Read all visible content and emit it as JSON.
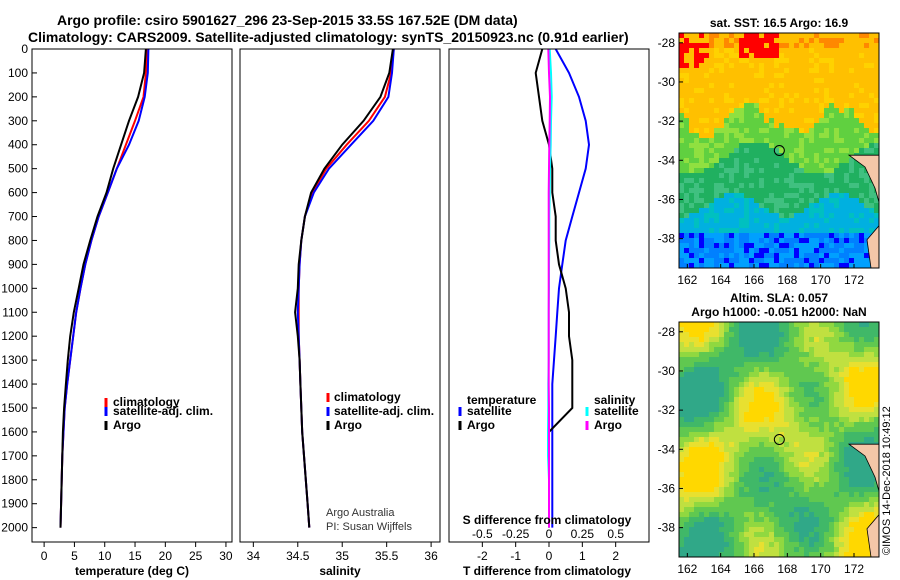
{
  "header": {
    "title_line1": "Argo profile: csiro 5901627_296 23-Sep-2015 33.5S 167.52E (DM data)",
    "title_line2": "Climatology: CARS2009. Satellite-adjusted climatology: synTS_20150923.nc (0.91d earlier)"
  },
  "colors": {
    "climatology": "#ff0000",
    "satellite": "#0000ff",
    "argo": "#000000",
    "sat_salinity": "#00ffff",
    "argo_salinity": "#ff00ff"
  },
  "chart_data": [
    {
      "type": "line",
      "id": "temperature",
      "xlabel": "temperature (deg C)",
      "ylabel": "",
      "xlim": [
        -2,
        31
      ],
      "ylim": [
        2060,
        0
      ],
      "xticks": [
        0,
        5,
        10,
        15,
        20,
        25,
        30
      ],
      "yticks": [
        0,
        100,
        200,
        300,
        400,
        500,
        600,
        700,
        800,
        900,
        1000,
        1100,
        1200,
        1300,
        1400,
        1500,
        1600,
        1700,
        1800,
        1900,
        2000
      ],
      "legend": [
        "climatology",
        "satellite-adj. clim.",
        "Argo"
      ],
      "series": [
        {
          "name": "climatology",
          "color": "#ff0000",
          "x": [
            17.0,
            16.8,
            16.4,
            15.0,
            13.5,
            12.0,
            10.5,
            9.0,
            7.8,
            6.8,
            6.0,
            5.3,
            4.8,
            4.3,
            3.8,
            3.4,
            3.2,
            3.0,
            2.9,
            2.8,
            2.7
          ],
          "y": [
            0,
            100,
            200,
            300,
            400,
            500,
            600,
            700,
            800,
            900,
            1000,
            1100,
            1200,
            1300,
            1400,
            1500,
            1600,
            1700,
            1800,
            1900,
            2000
          ]
        },
        {
          "name": "satellite-adj. clim.",
          "color": "#0000ff",
          "x": [
            17.2,
            17.1,
            16.6,
            15.6,
            14.0,
            12.0,
            10.5,
            9.0,
            7.8,
            6.8,
            6.0,
            5.3,
            4.8,
            4.3,
            3.8,
            3.4,
            3.2,
            3.0,
            2.9,
            2.8,
            2.7
          ],
          "y": [
            0,
            100,
            200,
            300,
            400,
            500,
            600,
            700,
            800,
            900,
            1000,
            1100,
            1200,
            1300,
            1400,
            1500,
            1600,
            1700,
            1800,
            1900,
            2000
          ]
        },
        {
          "name": "Argo",
          "color": "#000000",
          "x": [
            16.8,
            16.5,
            15.5,
            14.0,
            12.7,
            11.4,
            10.3,
            8.8,
            7.6,
            6.5,
            5.7,
            4.9,
            4.3,
            3.9,
            3.6,
            3.3,
            3.1,
            3.0,
            2.9,
            2.8,
            2.7
          ],
          "y": [
            0,
            100,
            200,
            300,
            400,
            500,
            600,
            700,
            800,
            900,
            1000,
            1100,
            1200,
            1300,
            1400,
            1500,
            1600,
            1700,
            1800,
            1900,
            2000
          ]
        }
      ]
    },
    {
      "type": "line",
      "id": "salinity",
      "xlabel": "salinity",
      "ylabel": "",
      "xlim": [
        33.85,
        36.1
      ],
      "ylim": [
        2060,
        0
      ],
      "xticks": [
        34,
        34.5,
        35,
        35.5,
        36
      ],
      "legend": [
        "climatology",
        "satellite-adj. clim.",
        "Argo"
      ],
      "annotation": [
        "Argo Australia",
        "PI: Susan Wijffels"
      ],
      "series": [
        {
          "name": "climatology",
          "color": "#ff0000",
          "x": [
            35.58,
            35.55,
            35.48,
            35.3,
            35.05,
            34.82,
            34.66,
            34.58,
            34.54,
            34.52,
            34.51,
            34.51,
            34.51,
            34.52,
            34.53,
            34.54,
            34.55,
            34.57,
            34.59,
            34.61,
            34.63
          ],
          "y": [
            0,
            100,
            200,
            300,
            400,
            500,
            600,
            700,
            800,
            900,
            1000,
            1100,
            1200,
            1300,
            1400,
            1500,
            1600,
            1700,
            1800,
            1900,
            2000
          ]
        },
        {
          "name": "satellite-adj. clim.",
          "color": "#0000ff",
          "x": [
            35.58,
            35.56,
            35.52,
            35.35,
            35.1,
            34.85,
            34.68,
            34.58,
            34.54,
            34.52,
            34.51,
            34.5,
            34.51,
            34.52,
            34.53,
            34.54,
            34.55,
            34.57,
            34.59,
            34.61,
            34.63
          ],
          "y": [
            0,
            100,
            200,
            300,
            400,
            500,
            600,
            700,
            800,
            900,
            1000,
            1100,
            1200,
            1300,
            1400,
            1500,
            1600,
            1700,
            1800,
            1900,
            2000
          ]
        },
        {
          "name": "Argo",
          "color": "#000000",
          "x": [
            35.57,
            35.53,
            35.43,
            35.24,
            35.0,
            34.8,
            34.65,
            34.58,
            34.54,
            34.51,
            34.5,
            34.47,
            34.5,
            34.52,
            34.53,
            34.54,
            34.55,
            34.57,
            34.59,
            34.61,
            34.63
          ],
          "y": [
            0,
            100,
            200,
            300,
            400,
            500,
            600,
            700,
            800,
            900,
            1000,
            1100,
            1200,
            1300,
            1400,
            1500,
            1600,
            1700,
            1800,
            1900,
            2000
          ]
        }
      ]
    },
    {
      "type": "line",
      "id": "differences",
      "xlabel": "T difference from climatology",
      "xlabel_top": "S difference from climatology",
      "xlim": [
        -3,
        3
      ],
      "ylim": [
        2060,
        0
      ],
      "xticks": [
        -2,
        -1,
        0,
        1,
        2
      ],
      "xticks_top_labels": [
        "-0.5",
        "-0.25",
        "0",
        "0.25",
        "0.5"
      ],
      "legend_left_title": "temperature",
      "legend_left": [
        "satellite",
        "Argo"
      ],
      "legend_right_title": "salinity",
      "legend_right": [
        "satellite",
        "Argo"
      ],
      "series": [
        {
          "name": "T satellite",
          "color": "#0000ff",
          "x": [
            0.2,
            0.6,
            0.9,
            1.1,
            1.2,
            1.1,
            0.9,
            0.7,
            0.5,
            0.4,
            0.3,
            0.25,
            0.2,
            0.15,
            0.1,
            0.1,
            0.1,
            0.1,
            0.1,
            0.1,
            0.1
          ],
          "y": [
            0,
            100,
            200,
            300,
            400,
            500,
            600,
            700,
            800,
            900,
            1000,
            1100,
            1200,
            1300,
            1400,
            1500,
            1600,
            1700,
            1800,
            1900,
            2000
          ]
        },
        {
          "name": "T Argo",
          "color": "#000000",
          "x": [
            -0.2,
            -0.4,
            -0.3,
            -0.2,
            0.0,
            0.1,
            0.1,
            0.2,
            0.2,
            0.3,
            0.5,
            0.6,
            0.6,
            0.7,
            0.7,
            0.7,
            0.0,
            0.0,
            0.0,
            0.0,
            0.0
          ],
          "y": [
            0,
            100,
            200,
            300,
            400,
            500,
            600,
            700,
            800,
            900,
            1000,
            1100,
            1200,
            1300,
            1400,
            1500,
            1600,
            1700,
            1800,
            1900,
            2000
          ]
        },
        {
          "name": "S satellite",
          "color": "#00ffff",
          "x": [
            0.02,
            0.06,
            0.08,
            0.06,
            0.05,
            0.03,
            0.02,
            0.01,
            0.01,
            0.0,
            0.0,
            -0.01,
            -0.01,
            -0.01,
            -0.02,
            -0.02,
            -0.03,
            -0.03,
            0.0,
            0.0,
            0.0
          ],
          "y": [
            0,
            100,
            200,
            300,
            400,
            500,
            600,
            700,
            800,
            900,
            1000,
            1100,
            1200,
            1300,
            1400,
            1500,
            1600,
            1700,
            1800,
            1900,
            2000
          ]
        },
        {
          "name": "S Argo",
          "color": "#ff00ff",
          "x": [
            -0.02,
            0.0,
            0.03,
            0.02,
            0.01,
            0.0,
            -0.01,
            -0.01,
            -0.01,
            -0.01,
            -0.01,
            -0.01,
            -0.01,
            -0.01,
            -0.01,
            0.0,
            0.0,
            0.0,
            0.0,
            0.0,
            0.0
          ],
          "y": [
            0,
            100,
            200,
            300,
            400,
            500,
            600,
            700,
            800,
            900,
            1000,
            1100,
            1200,
            1300,
            1400,
            1500,
            1600,
            1700,
            1800,
            1900,
            2000
          ]
        }
      ]
    },
    {
      "type": "heatmap",
      "id": "sst_map",
      "title": "sat. SST: 16.5 Argo: 16.9",
      "xlim": [
        161.5,
        173.5
      ],
      "ylim": [
        -39.5,
        -27.5
      ],
      "xticks": [
        162,
        164,
        166,
        168,
        170,
        172
      ],
      "yticks": [
        -28,
        -30,
        -32,
        -34,
        -36,
        -38
      ],
      "marker": {
        "lon": 167.52,
        "lat": -33.5
      }
    },
    {
      "type": "heatmap",
      "id": "sla_map",
      "title_line1": "Altim. SLA: 0.057",
      "title_line2": "Argo h1000: -0.051 h2000: NaN",
      "xlim": [
        161.5,
        173.5
      ],
      "ylim": [
        -39.5,
        -27.5
      ],
      "xticks": [
        162,
        164,
        166,
        168,
        170,
        172
      ],
      "yticks": [
        -28,
        -30,
        -32,
        -34,
        -36,
        -38
      ],
      "marker": {
        "lon": 167.52,
        "lat": -33.5
      }
    }
  ],
  "footer": {
    "credit": "©IMOS 14-Dec-2018 10:49:12"
  }
}
